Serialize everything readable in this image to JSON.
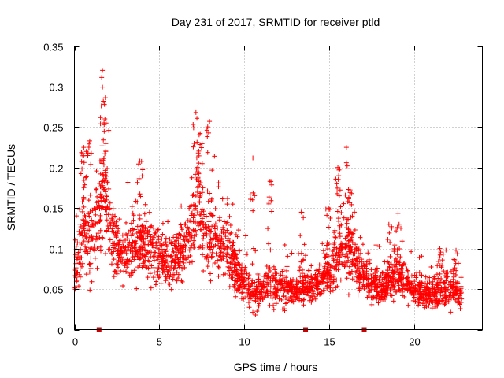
{
  "chart_data": {
    "type": "scatter",
    "title": "Day 231 of 2017, SRMTID for receiver ptld",
    "xlabel": "GPS time / hours",
    "ylabel": "SRMTID / TECUs",
    "xlim": [
      0,
      24
    ],
    "ylim": [
      0,
      0.35
    ],
    "x_ticks": [
      0,
      5,
      10,
      15,
      20
    ],
    "x_tick_labels": [
      "0",
      "5",
      "10",
      "15",
      "20"
    ],
    "y_ticks": [
      0,
      0.05,
      0.1,
      0.15,
      0.2,
      0.25,
      0.3,
      0.35
    ],
    "y_tick_labels": [
      "0",
      "0.05",
      "0.1",
      "0.15",
      "0.2",
      "0.25",
      "0.3",
      "0.35"
    ],
    "grid": true,
    "marker": "+",
    "marker_color": "#ff0000",
    "gap_marker_color": "#cc0000",
    "data_gap_markers_x": [
      1.45,
      13.6,
      17.05
    ],
    "series": [
      {
        "name": "SRMTID",
        "time_range": [
          0,
          22.8
        ],
        "envelope": [
          [
            0.0,
            0.065,
            0.03
          ],
          [
            0.5,
            0.12,
            0.05
          ],
          [
            1.0,
            0.1,
            0.045
          ],
          [
            1.7,
            0.16,
            0.06
          ],
          [
            2.5,
            0.09,
            0.035
          ],
          [
            3.5,
            0.1,
            0.035
          ],
          [
            4.5,
            0.1,
            0.035
          ],
          [
            5.5,
            0.08,
            0.03
          ],
          [
            6.5,
            0.1,
            0.035
          ],
          [
            7.2,
            0.14,
            0.045
          ],
          [
            8.0,
            0.11,
            0.04
          ],
          [
            9.0,
            0.1,
            0.035
          ],
          [
            9.8,
            0.06,
            0.025
          ],
          [
            10.5,
            0.045,
            0.02
          ],
          [
            11.5,
            0.055,
            0.025
          ],
          [
            12.5,
            0.05,
            0.02
          ],
          [
            13.5,
            0.05,
            0.02
          ],
          [
            14.5,
            0.06,
            0.022
          ],
          [
            15.5,
            0.085,
            0.035
          ],
          [
            16.2,
            0.1,
            0.04
          ],
          [
            17.0,
            0.065,
            0.025
          ],
          [
            18.0,
            0.05,
            0.02
          ],
          [
            19.0,
            0.07,
            0.03
          ],
          [
            20.0,
            0.05,
            0.02
          ],
          [
            21.0,
            0.045,
            0.02
          ],
          [
            22.0,
            0.05,
            0.02
          ],
          [
            22.8,
            0.045,
            0.018
          ]
        ],
        "peaks": [
          [
            0.55,
            0.225
          ],
          [
            0.7,
            0.22
          ],
          [
            0.9,
            0.233
          ],
          [
            1.65,
            0.32
          ],
          [
            1.7,
            0.282
          ],
          [
            1.75,
            0.253
          ],
          [
            1.85,
            0.22
          ],
          [
            3.85,
            0.208
          ],
          [
            7.15,
            0.268
          ],
          [
            7.4,
            0.242
          ],
          [
            7.95,
            0.257
          ],
          [
            7.25,
            0.2
          ],
          [
            10.5,
            0.212
          ],
          [
            11.5,
            0.183
          ],
          [
            13.35,
            0.145
          ],
          [
            14.95,
            0.15
          ],
          [
            15.5,
            0.2
          ],
          [
            15.55,
            0.19
          ],
          [
            16.0,
            0.225
          ],
          [
            16.3,
            0.168
          ],
          [
            18.5,
            0.13
          ],
          [
            19.1,
            0.13
          ],
          [
            21.5,
            0.1
          ],
          [
            22.45,
            0.098
          ]
        ],
        "point_count": 2300,
        "seed": 231
      }
    ]
  }
}
